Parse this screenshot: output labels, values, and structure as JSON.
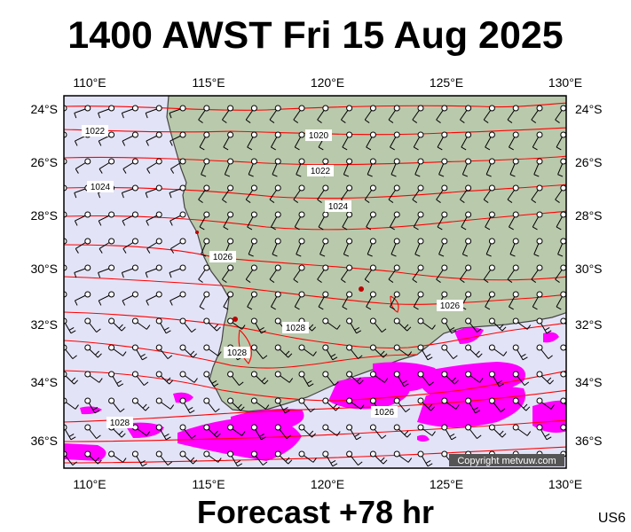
{
  "header": {
    "title": "1400 AWST Fri 15 Aug 2025"
  },
  "footer": {
    "forecast": "Forecast +78 hr",
    "map_id": "US6"
  },
  "credit": "Copyright metvuw.com",
  "map": {
    "lon_range": [
      109,
      130
    ],
    "lat_range": [
      -37,
      -23.5
    ],
    "lon_ticks": [
      "110°E",
      "115°E",
      "120°E",
      "125°E",
      "130°E"
    ],
    "lat_ticks": [
      "24°S",
      "26°S",
      "28°S",
      "30°S",
      "32°S",
      "34°S",
      "36°S"
    ],
    "isobar_labels": [
      "1022",
      "1020",
      "1022",
      "1024",
      "1024",
      "1026",
      "1026",
      "1028",
      "1028",
      "1028",
      "1026"
    ],
    "colors": {
      "ocean": "#e3e3f7",
      "land": "#b9c9ac",
      "isobar": "#ff0000",
      "rain": "#ff00ff",
      "coast": "#444444"
    }
  }
}
